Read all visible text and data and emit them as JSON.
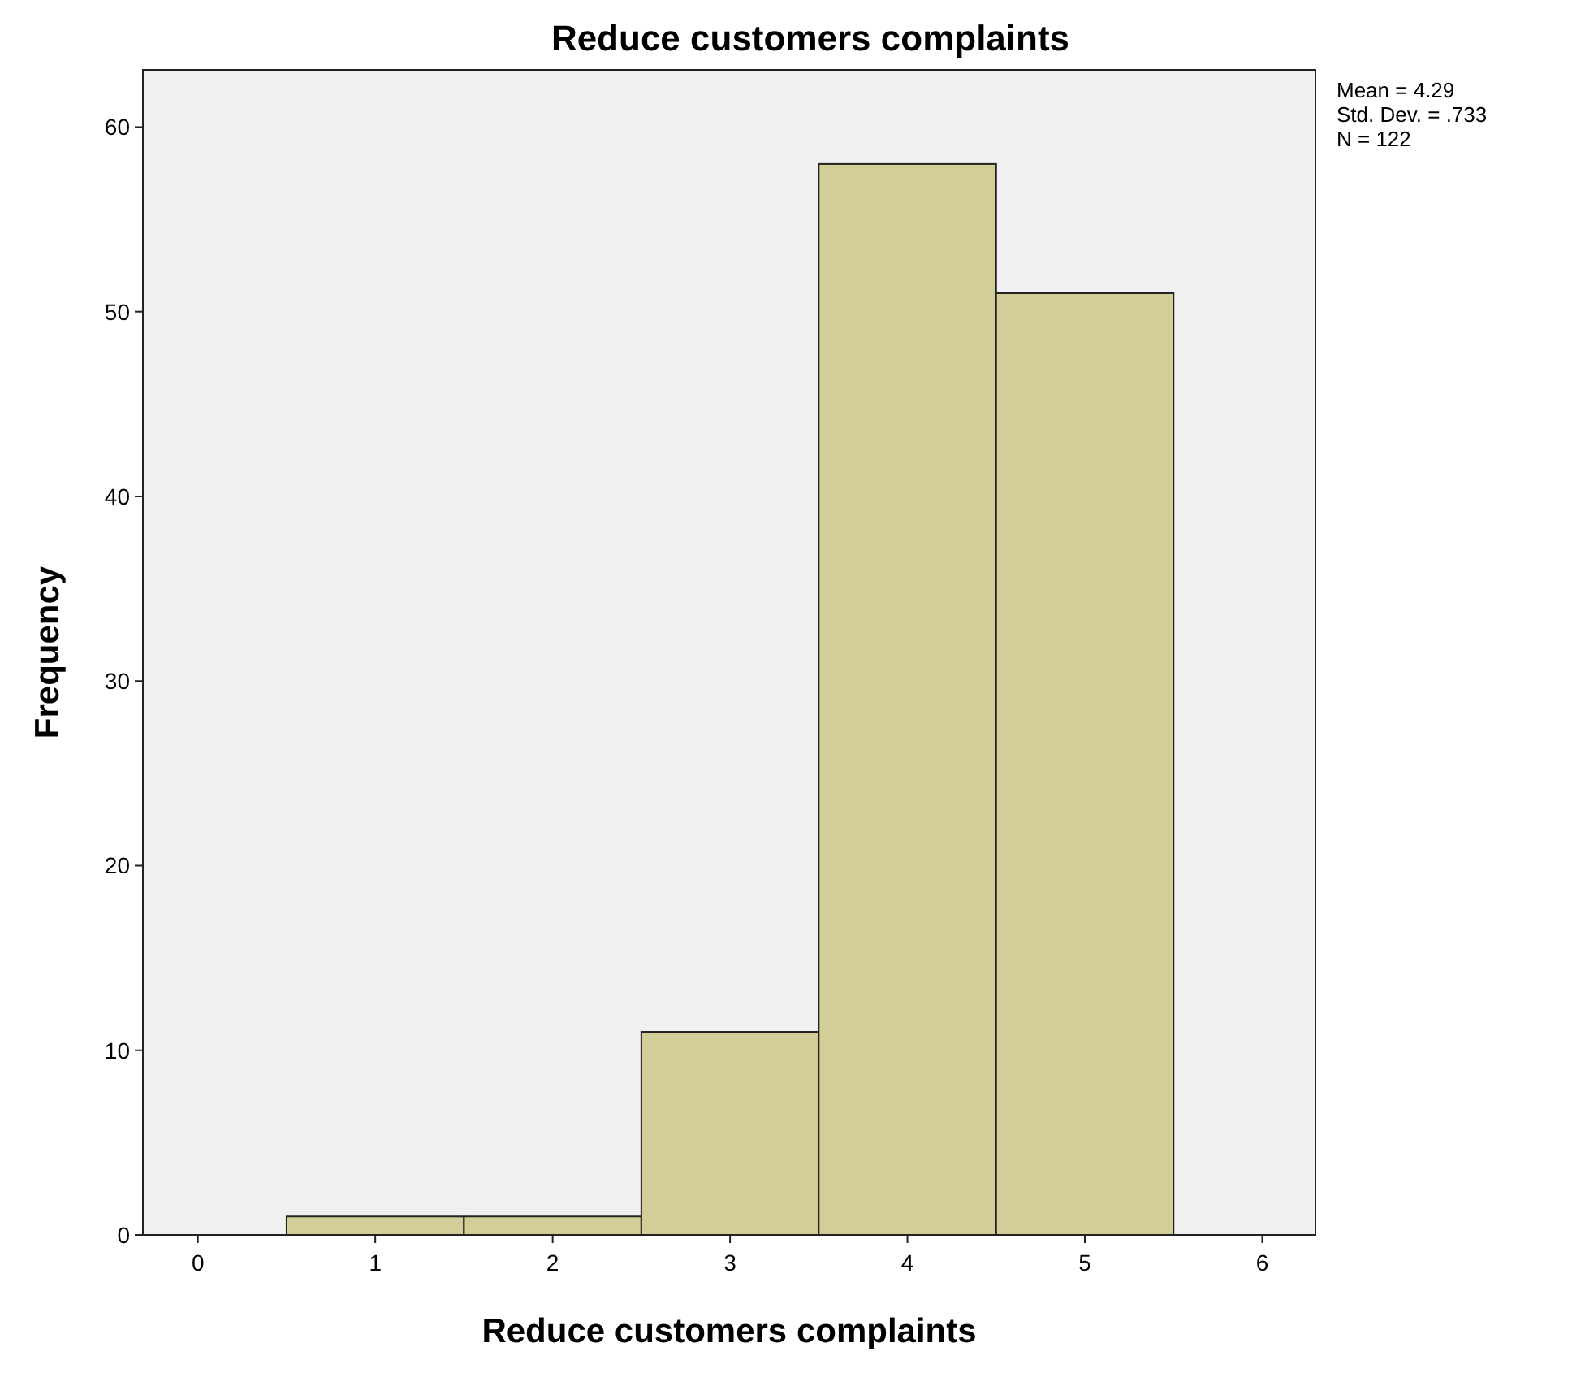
{
  "chart_data": {
    "type": "histogram",
    "title": "Reduce customers complaints",
    "xlabel": "Reduce customers complaints",
    "ylabel": "Frequency",
    "bins": [
      0.5,
      1.5,
      2.5,
      3.5,
      4.5,
      5.5
    ],
    "values": [
      1,
      1,
      11,
      58,
      51
    ],
    "color": "#d3ce97",
    "xlim": [
      -0.31,
      6.3
    ],
    "xticks": [
      0,
      1,
      2,
      3,
      4,
      5,
      6
    ],
    "ylim": [
      0,
      63.1
    ],
    "yticks": [
      0,
      10,
      20,
      30,
      40,
      50,
      60
    ],
    "grid": false,
    "annotations": [
      "Mean = 4.29",
      "Std. Dev. = .733",
      "N = 122"
    ]
  }
}
